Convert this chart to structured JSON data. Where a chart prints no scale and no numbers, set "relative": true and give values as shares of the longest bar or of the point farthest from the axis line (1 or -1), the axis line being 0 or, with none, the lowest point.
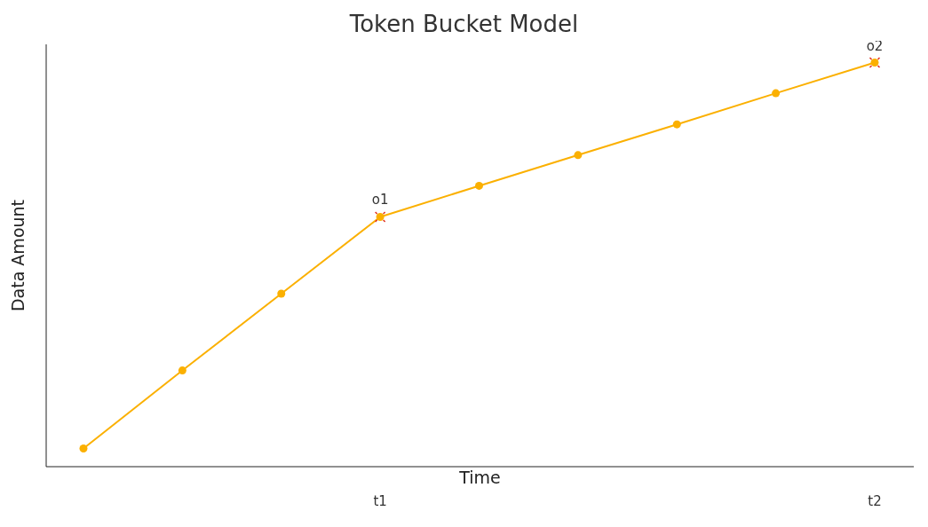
{
  "chart_data": {
    "type": "line",
    "title": "Token Bucket Model",
    "xlabel": "Time",
    "ylabel": "Data Amount",
    "relative": true,
    "categories": [
      null,
      null,
      null,
      "t1",
      null,
      null,
      null,
      null,
      "t2"
    ],
    "series": [
      {
        "color": "#fbb000",
        "values": [
          0.045,
          0.238,
          0.428,
          0.618,
          0.695,
          0.771,
          0.847,
          0.924,
          1
        ],
        "marker": "circle"
      },
      {
        "type": "scatter",
        "color": "#e03020",
        "marker": "cross",
        "values": [
          null,
          null,
          null,
          0.618,
          null,
          null,
          null,
          null,
          1
        ]
      }
    ],
    "annotations": [
      {
        "text": "o1",
        "x": "t1",
        "y": 0.618
      },
      {
        "text": "o2",
        "x": "t2",
        "y": 1
      }
    ],
    "grid": false,
    "legend": false,
    "line_style": "solid"
  }
}
